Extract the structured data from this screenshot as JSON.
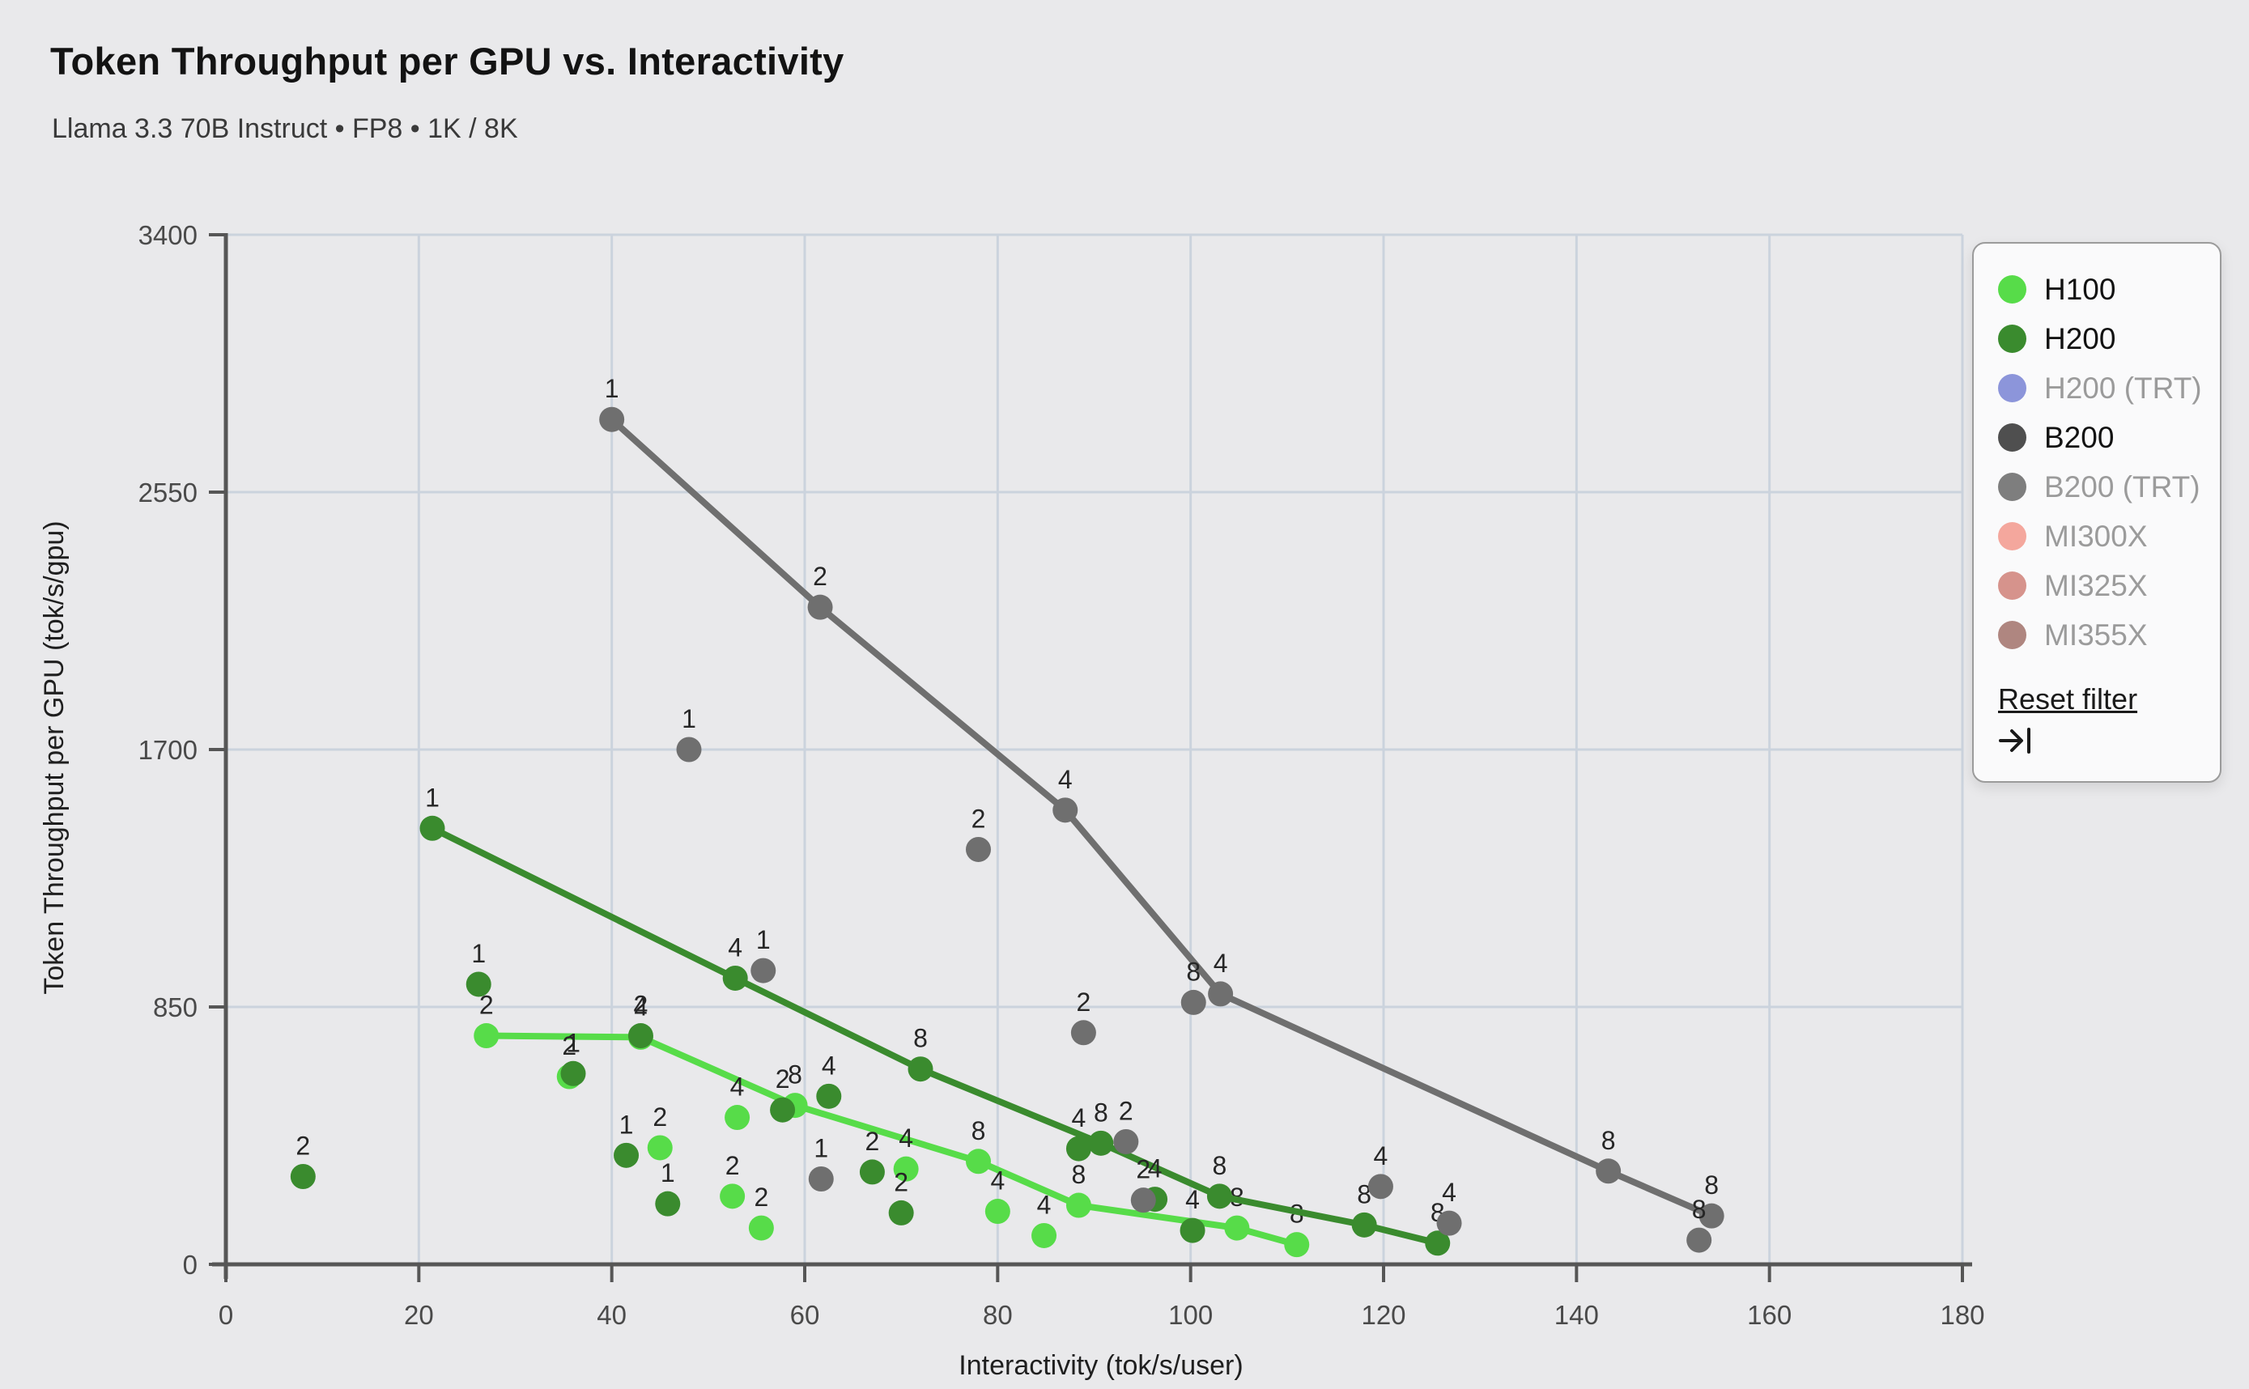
{
  "header": {
    "title": "Token Throughput per GPU vs. Interactivity",
    "subtitle": "Llama 3.3 70B Instruct • FP8 • 1K / 8K"
  },
  "chart_data": {
    "type": "scatter",
    "title": "Token Throughput per GPU vs. Interactivity",
    "xlabel": "Interactivity (tok/s/user)",
    "ylabel": "Token Throughput per GPU (tok/s/gpu)",
    "xlim": [
      0,
      180
    ],
    "ylim": [
      0,
      3400
    ],
    "xticks": [
      0,
      20,
      40,
      60,
      80,
      100,
      120,
      140,
      160,
      180
    ],
    "yticks": [
      0,
      850,
      1700,
      2550,
      3400
    ],
    "grid": true,
    "point_labels": "GPU count shown above each point",
    "series": [
      {
        "name": "H100",
        "color": "#57DC49",
        "line": [
          [
            27,
            755,
            "2"
          ],
          [
            43,
            750,
            "4"
          ],
          [
            59,
            525,
            "8"
          ],
          [
            78,
            340,
            "8"
          ],
          [
            88.4,
            195,
            "8"
          ],
          [
            104.8,
            120,
            "8"
          ],
          [
            111,
            65,
            "8"
          ]
        ],
        "scatter": [
          [
            35.6,
            620,
            "2"
          ],
          [
            45,
            385,
            "2"
          ],
          [
            52.5,
            225,
            "2"
          ],
          [
            55.5,
            120,
            "2"
          ],
          [
            53,
            485,
            "4"
          ],
          [
            70.5,
            315,
            "4"
          ],
          [
            80,
            175,
            "4"
          ],
          [
            84.8,
            95,
            "4"
          ]
        ]
      },
      {
        "name": "H200",
        "color": "#3A8B2E",
        "line": [
          [
            21.4,
            1440,
            "1"
          ],
          [
            52.8,
            945,
            "4"
          ],
          [
            72,
            645,
            "8"
          ],
          [
            90.7,
            400,
            "8"
          ],
          [
            103,
            225,
            "8"
          ],
          [
            118,
            130,
            "8"
          ],
          [
            125.6,
            70,
            "8"
          ]
        ],
        "scatter": [
          [
            8,
            290,
            "2"
          ],
          [
            26.2,
            925,
            "1"
          ],
          [
            36,
            630,
            "1"
          ],
          [
            41.5,
            360,
            "1"
          ],
          [
            45.8,
            200,
            "1"
          ],
          [
            43,
            755,
            "2"
          ],
          [
            57.7,
            510,
            "2"
          ],
          [
            62.5,
            555,
            "4"
          ],
          [
            67,
            305,
            "2"
          ],
          [
            70,
            170,
            "2"
          ],
          [
            88.4,
            382,
            "4"
          ],
          [
            96.3,
            215,
            "4"
          ],
          [
            100.2,
            112,
            "4"
          ]
        ]
      },
      {
        "name": "B200",
        "color": "#6F6F6F",
        "line": [
          [
            40,
            2790,
            "1"
          ],
          [
            61.6,
            2170,
            "2"
          ],
          [
            87,
            1500,
            "4"
          ],
          [
            103.1,
            893,
            "4"
          ],
          [
            143.3,
            308,
            "8"
          ],
          [
            154,
            160,
            "8"
          ]
        ],
        "scatter": [
          [
            48,
            1700,
            "1"
          ],
          [
            55.7,
            970,
            "1"
          ],
          [
            61.7,
            282,
            "1"
          ],
          [
            78,
            1370,
            "2"
          ],
          [
            88.9,
            765,
            "2"
          ],
          [
            93.3,
            405,
            "2"
          ],
          [
            95.1,
            212,
            "2"
          ],
          [
            100.3,
            865,
            "8"
          ],
          [
            119.7,
            257,
            "4"
          ],
          [
            126.8,
            136,
            "4"
          ],
          [
            152.7,
            80,
            "8"
          ]
        ]
      }
    ]
  },
  "legend": {
    "items": [
      {
        "label": "H100",
        "color": "#57DC49",
        "active": true
      },
      {
        "label": "H200",
        "color": "#3A8B2E",
        "active": true
      },
      {
        "label": "H200 (TRT)",
        "color": "#8C95DA",
        "active": false
      },
      {
        "label": "B200",
        "color": "#4F4F4F",
        "active": true
      },
      {
        "label": "B200 (TRT)",
        "color": "#7E7E7E",
        "active": false
      },
      {
        "label": "MI300X",
        "color": "#F4A79D",
        "active": false
      },
      {
        "label": "MI325X",
        "color": "#D6938C",
        "active": false
      },
      {
        "label": "MI355X",
        "color": "#AF8680",
        "active": false
      }
    ],
    "reset_label": "Reset filter"
  },
  "style_colors": {
    "background": "#E9E9EB",
    "gridline": "#CBD3DD",
    "axis": "#565656",
    "tick_text": "#4A4A4A",
    "point_label_text": "#262626"
  }
}
